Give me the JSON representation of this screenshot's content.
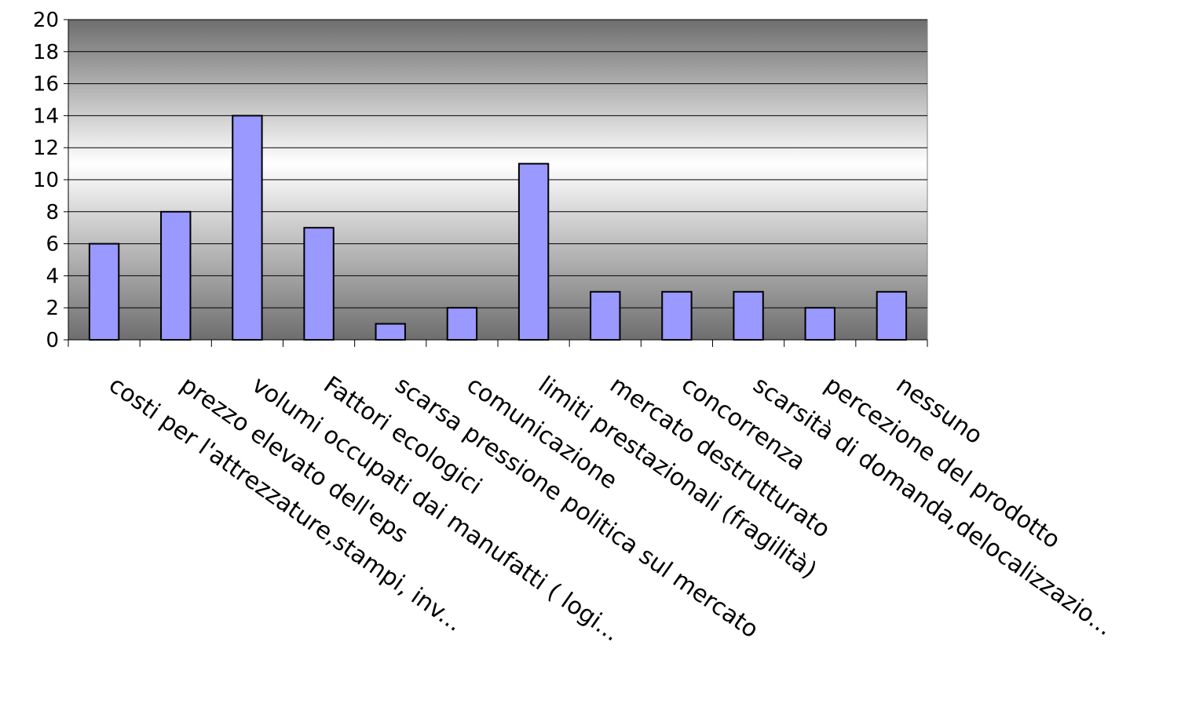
{
  "chart_data": {
    "type": "bar",
    "title": "",
    "xlabel": "",
    "ylabel": "",
    "ylim": [
      0,
      20
    ],
    "yticks": [
      0,
      2,
      4,
      6,
      8,
      10,
      12,
      14,
      16,
      18,
      20
    ],
    "grid": true,
    "categories": [
      "costi per l'attrezzature,stampi, inv...",
      "prezzo elevato dell'eps",
      "volumi occupati dai manufatti ( logi...",
      "Fattori ecologici",
      "scarsa pressione politica sul mercato",
      "comunicazione",
      "limiti prestazionali (fragilità)",
      "mercato destrutturato",
      "concorrenza",
      "scarsità di domanda,delocalizzazio...",
      "percezione  del prodotto",
      "nessuno"
    ],
    "values": [
      6,
      8,
      14,
      7,
      1,
      2,
      11,
      3,
      3,
      3,
      2,
      3
    ],
    "colors": {
      "bar_fill": "#9999ff",
      "bar_stroke": "#000000",
      "background_top": "#6e6e6e",
      "background_mid": "#ffffff",
      "background_bottom": "#6e6e6e"
    }
  }
}
